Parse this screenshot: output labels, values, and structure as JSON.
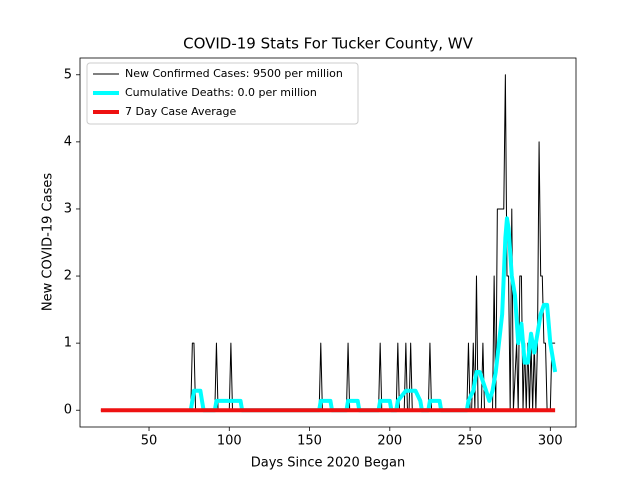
{
  "chart_data": {
    "type": "line",
    "title": "COVID-19 Stats For Tucker County, WV",
    "xlabel": "Days Since 2020 Began",
    "ylabel": "New COVID-19 Cases",
    "xlim": [
      7,
      316
    ],
    "ylim": [
      -0.25,
      5.25
    ],
    "xticks": [
      50,
      100,
      150,
      200,
      250,
      300
    ],
    "yticks": [
      0,
      1,
      2,
      3,
      4,
      5
    ],
    "legend": "upper left",
    "series": [
      {
        "name": "New Confirmed Cases: 9500 per million",
        "color": "#000000",
        "width": 1,
        "x": [
          20,
          76,
          77,
          78,
          79,
          91,
          92,
          93,
          100,
          101,
          102,
          156,
          157,
          158,
          173,
          174,
          175,
          193,
          194,
          195,
          204,
          205,
          206,
          209,
          210,
          211,
          212,
          213,
          214,
          224,
          225,
          226,
          248,
          249,
          250,
          251,
          252,
          253,
          254,
          255,
          257,
          258,
          259,
          264,
          265,
          266,
          267,
          268,
          269,
          270,
          271,
          272,
          273,
          274,
          275,
          276,
          277,
          279,
          280,
          281,
          282,
          283,
          284,
          285,
          286,
          287,
          288,
          289,
          290,
          291,
          292,
          293,
          294,
          295,
          296,
          297,
          298,
          299,
          300,
          301,
          302,
          303
        ],
        "values": [
          0,
          0,
          1,
          1,
          0,
          0,
          1,
          0,
          0,
          1,
          0,
          0,
          1,
          0,
          0,
          1,
          0,
          0,
          1,
          0,
          0,
          1,
          0,
          0,
          1,
          0,
          0,
          1,
          0,
          0,
          1,
          0,
          0,
          1,
          0,
          0,
          1,
          0,
          2,
          0,
          0,
          1,
          0,
          0,
          2,
          0,
          3,
          3,
          3,
          3,
          3,
          5,
          2,
          2,
          0,
          3,
          0,
          1,
          0,
          2,
          2,
          0,
          1,
          0,
          1,
          0,
          1,
          0,
          1,
          0,
          1,
          4,
          2,
          2,
          1,
          1,
          0,
          0,
          0,
          1,
          1,
          1
        ]
      },
      {
        "name": "Cumulative Deaths: 0.0 per million",
        "color": "#00ffff",
        "width": 4,
        "x": [
          76,
          77,
          78,
          82,
          83,
          84,
          91,
          92,
          107,
          108,
          156,
          157,
          163,
          164,
          173,
          174,
          180,
          181,
          193,
          194,
          200,
          201,
          204,
          205,
          210,
          216,
          219,
          220,
          224,
          225,
          231,
          232,
          248,
          249,
          252,
          254,
          256,
          258,
          260,
          262,
          264,
          266,
          268,
          270,
          272,
          273,
          274,
          276,
          278,
          280,
          282,
          284,
          286,
          288,
          290,
          292,
          294,
          296,
          298,
          300,
          302,
          303
        ],
        "values": [
          0,
          0.14,
          0.29,
          0.29,
          0.14,
          0,
          0,
          0.14,
          0.14,
          0,
          0,
          0.14,
          0.14,
          0,
          0,
          0.14,
          0.14,
          0,
          0,
          0.14,
          0.14,
          0,
          0,
          0.14,
          0.29,
          0.29,
          0.14,
          0,
          0,
          0.14,
          0.14,
          0,
          0,
          0.14,
          0.29,
          0.57,
          0.57,
          0.43,
          0.29,
          0.14,
          0.29,
          0.57,
          1,
          1.43,
          2.57,
          2.86,
          2.71,
          2,
          1.71,
          1,
          1.29,
          0.71,
          0.71,
          1.14,
          0.86,
          1.14,
          1.43,
          1.57,
          1.57,
          1,
          0.71,
          0.57
        ]
      },
      {
        "name": "7 Day Case Average",
        "color": "#ee1111",
        "width": 4,
        "x": [
          20,
          303
        ],
        "values": [
          0,
          0
        ]
      }
    ]
  }
}
